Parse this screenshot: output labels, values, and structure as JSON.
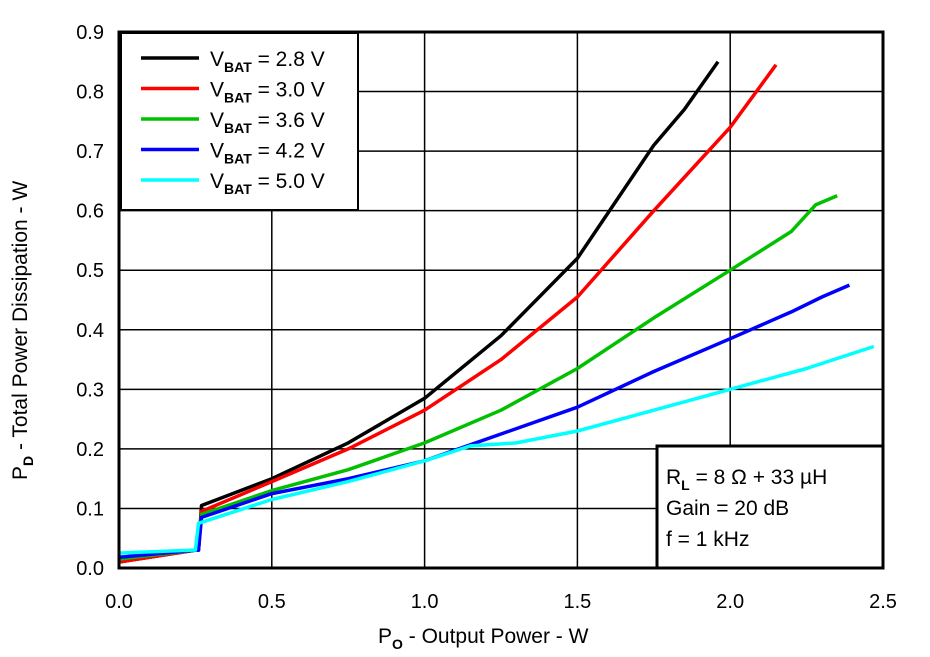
{
  "chart_data": {
    "type": "line",
    "xlabel": {
      "main": "P",
      "sub": "O",
      "rest": " - Output Power - W"
    },
    "ylabel": {
      "main": "P",
      "sub": "D",
      "rest": " - Total Power Dissipation - W"
    },
    "xlim": [
      0,
      2.5
    ],
    "ylim": [
      0,
      0.9
    ],
    "xticks": [
      "0.0",
      "0.5",
      "1.0",
      "1.5",
      "2.0",
      "2.5"
    ],
    "yticks": [
      "0.0",
      "0.1",
      "0.2",
      "0.3",
      "0.4",
      "0.5",
      "0.6",
      "0.7",
      "0.8",
      "0.9"
    ],
    "grid": true,
    "legend_placement": "top-left",
    "series": [
      {
        "name": {
          "main": "V",
          "sub": "BAT",
          "rest": " = 2.8 V"
        },
        "color": "#000000",
        "x": [
          0,
          0.25,
          0.26,
          0.27,
          0.5,
          0.75,
          1.0,
          1.25,
          1.5,
          1.75,
          1.85,
          1.96
        ],
        "y": [
          0.01,
          0.03,
          0.03,
          0.105,
          0.15,
          0.21,
          0.285,
          0.39,
          0.52,
          0.71,
          0.77,
          0.85
        ]
      },
      {
        "name": {
          "main": "V",
          "sub": "BAT",
          "rest": " = 3.0 V"
        },
        "color": "#ff0000",
        "x": [
          0,
          0.25,
          0.26,
          0.27,
          0.5,
          0.75,
          1.0,
          1.25,
          1.5,
          1.75,
          2.0,
          2.15
        ],
        "y": [
          0.01,
          0.03,
          0.03,
          0.095,
          0.145,
          0.2,
          0.265,
          0.35,
          0.455,
          0.6,
          0.74,
          0.845
        ]
      },
      {
        "name": {
          "main": "V",
          "sub": "BAT",
          "rest": " = 3.6 V"
        },
        "color": "#00c000",
        "x": [
          0,
          0.25,
          0.26,
          0.27,
          0.5,
          0.75,
          1.0,
          1.25,
          1.5,
          1.75,
          2.0,
          2.2,
          2.28,
          2.35
        ],
        "y": [
          0.015,
          0.03,
          0.03,
          0.09,
          0.13,
          0.165,
          0.21,
          0.265,
          0.335,
          0.42,
          0.5,
          0.565,
          0.61,
          0.625
        ]
      },
      {
        "name": {
          "main": "V",
          "sub": "BAT",
          "rest": " = 4.2 V"
        },
        "color": "#0000ff",
        "x": [
          0,
          0.25,
          0.26,
          0.27,
          0.5,
          0.75,
          1.0,
          1.25,
          1.5,
          1.75,
          2.0,
          2.2,
          2.3,
          2.39
        ],
        "y": [
          0.018,
          0.03,
          0.03,
          0.085,
          0.125,
          0.15,
          0.18,
          0.225,
          0.27,
          0.33,
          0.385,
          0.43,
          0.455,
          0.475
        ]
      },
      {
        "name": {
          "main": "V",
          "sub": "BAT",
          "rest": " = 5.0 V"
        },
        "color": "#00ffff",
        "x": [
          0,
          0.24,
          0.25,
          0.26,
          0.5,
          0.75,
          1.0,
          1.15,
          1.3,
          1.5,
          1.75,
          2.0,
          2.25,
          2.47
        ],
        "y": [
          0.025,
          0.03,
          0.03,
          0.075,
          0.115,
          0.145,
          0.18,
          0.205,
          0.21,
          0.23,
          0.265,
          0.3,
          0.335,
          0.372
        ]
      }
    ],
    "annotations": [
      {
        "main": "R",
        "sub": "L",
        "rest": " = 8 Ω + 33 µH"
      },
      {
        "text": "Gain = 20 dB"
      },
      {
        "text": "f = 1 kHz"
      }
    ]
  }
}
